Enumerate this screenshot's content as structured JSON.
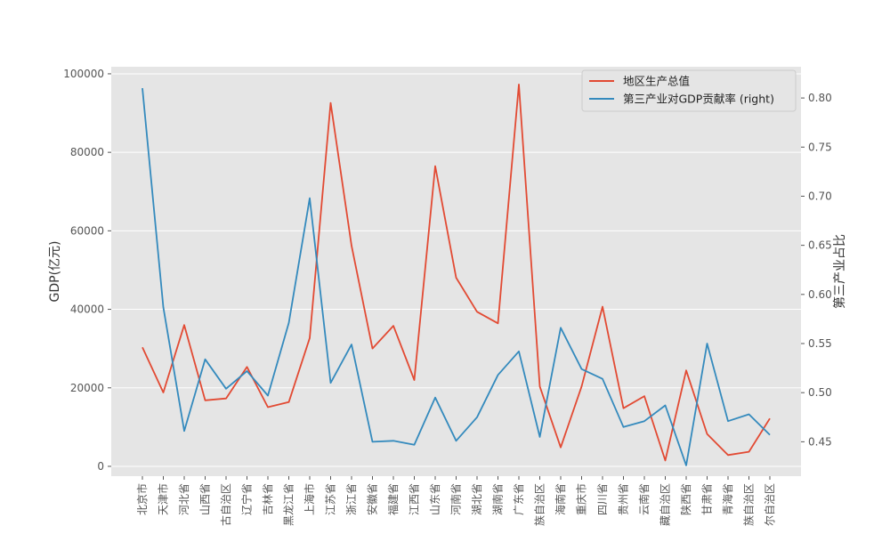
{
  "chart_data": {
    "type": "line",
    "categories": [
      "北京市",
      "天津市",
      "河北省",
      "山西省",
      "内蒙古自治区",
      "辽宁省",
      "吉林省",
      "黑龙江省",
      "上海市",
      "江苏省",
      "浙江省",
      "安徽省",
      "福建省",
      "江西省",
      "山东省",
      "河南省",
      "湖北省",
      "湖南省",
      "广东省",
      "广西壮族自治区",
      "海南省",
      "重庆市",
      "四川省",
      "贵州省",
      "云南省",
      "西藏自治区",
      "陕西省",
      "甘肃省",
      "青海省",
      "宁夏回族自治区",
      "新疆维吾尔自治区"
    ],
    "tick_labels": [
      "北京市",
      "天津市",
      "河北省",
      "山西省",
      "古自治区",
      "辽宁省",
      "吉林省",
      "黑龙江省",
      "上海市",
      "江苏省",
      "浙江省",
      "安徽省",
      "福建省",
      "江西省",
      "山东省",
      "河南省",
      "湖北省",
      "湖南省",
      "广东省",
      "族自治区",
      "海南省",
      "重庆市",
      "四川省",
      "贵州省",
      "云南省",
      "藏自治区",
      "陕西省",
      "甘肃省",
      "青海省",
      "族自治区",
      "尔自治区"
    ],
    "series": [
      {
        "name": "地区生产总值",
        "axis": "left",
        "color": "#E24A33",
        "values": [
          30320,
          18810,
          36010,
          16820,
          17290,
          25320,
          15070,
          16360,
          32680,
          92600,
          56200,
          30010,
          35800,
          21980,
          76470,
          48060,
          39370,
          36430,
          97280,
          20350,
          4830,
          20360,
          40680,
          14810,
          17880,
          1480,
          24440,
          8250,
          2870,
          3710,
          12200
        ]
      },
      {
        "name": "第三产业对GDP贡献率 (right)",
        "axis": "right",
        "color": "#348ABD",
        "values": [
          0.81,
          0.587,
          0.461,
          0.534,
          0.504,
          0.522,
          0.497,
          0.571,
          0.698,
          0.51,
          0.549,
          0.45,
          0.451,
          0.447,
          0.495,
          0.451,
          0.475,
          0.518,
          0.542,
          0.455,
          0.566,
          0.524,
          0.514,
          0.465,
          0.471,
          0.487,
          0.426,
          0.55,
          0.471,
          0.478,
          0.457
        ]
      }
    ],
    "ylabel": "GDP(亿元)",
    "y2label": "第三产业占比",
    "ylim": [
      -2500,
      101800
    ],
    "y2lim": [
      0.415,
      0.8318
    ],
    "yticks": [
      "0",
      "20000",
      "40000",
      "60000",
      "80000",
      "100000"
    ],
    "y2ticks": [
      "0.45",
      "0.50",
      "0.55",
      "0.60",
      "0.65",
      "0.70",
      "0.75",
      "0.80"
    ],
    "grid": true,
    "legend": "top-right",
    "background": "#E5E5E5",
    "grid_color": "#FFFFFF"
  }
}
